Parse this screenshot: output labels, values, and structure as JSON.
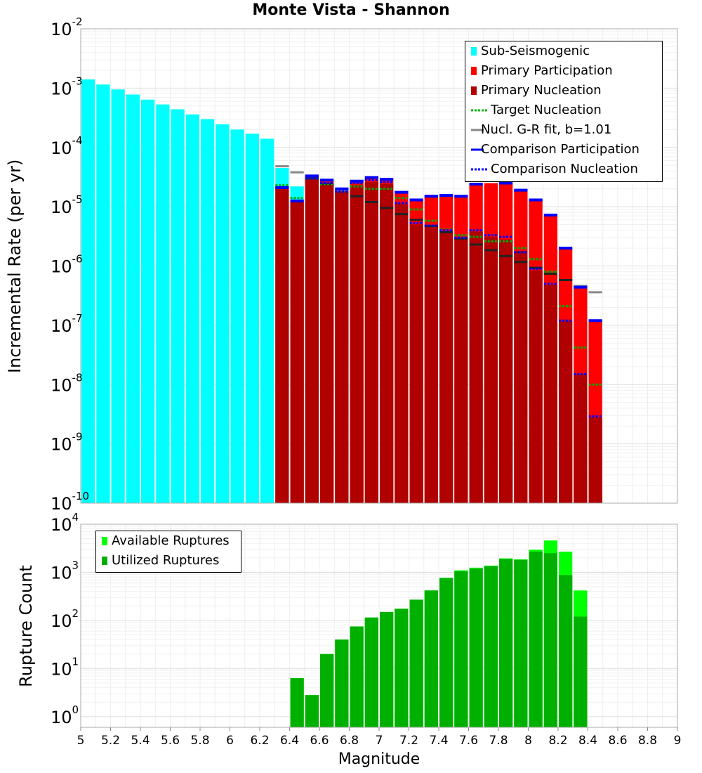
{
  "chart_data": [
    {
      "type": "bar",
      "title": "Monte Vista - Shannon",
      "xlabel": "",
      "ylabel": "Incremental Rate (per yr)",
      "yscale": "log",
      "ylim": [
        1e-10,
        0.01
      ],
      "xlim": [
        5,
        9
      ],
      "grid": true,
      "legend_position": "top-right",
      "y_tick_exponents": [
        "-10",
        "-9",
        "-8",
        "-7",
        "-6",
        "-5",
        "-4",
        "-3",
        "-2"
      ],
      "legend": [
        {
          "label": "Sub-Seismogenic",
          "symbol": "bar",
          "color": "#00ffff"
        },
        {
          "label": "Primary Participation",
          "symbol": "bar",
          "color": "#ff0000"
        },
        {
          "label": "Primary Nucleation",
          "symbol": "bar",
          "color": "#b00000"
        },
        {
          "label": "Target Nucleation",
          "symbol": "dotted",
          "color": "#00bb00"
        },
        {
          "label": "Nucl. G-R fit, b=1.01",
          "symbol": "line",
          "color": "#888888"
        },
        {
          "label": "Comparison Participation",
          "symbol": "line",
          "color": "#0000ff"
        },
        {
          "label": "Comparison Nucleation",
          "symbol": "dotted",
          "color": "#0000ff"
        }
      ],
      "bin_width": 0.1,
      "series": [
        {
          "name": "Sub-Seismogenic",
          "color": "#00ffff",
          "x": [
            5.05,
            5.15,
            5.25,
            5.35,
            5.45,
            5.55,
            5.65,
            5.75,
            5.85,
            5.95,
            6.05,
            6.15,
            6.25,
            6.35,
            6.45
          ],
          "values": [
            0.0014,
            0.00115,
            0.00095,
            0.00078,
            0.00064,
            0.00053,
            0.00044,
            0.00036,
            0.0003,
            0.000245,
            0.0002,
            0.00017,
            0.00014,
            4.5e-05,
            2.2e-05
          ]
        },
        {
          "name": "Primary Participation",
          "color": "#ff0000",
          "x": [
            6.35,
            6.45,
            6.55,
            6.65,
            6.75,
            6.85,
            6.95,
            7.05,
            7.15,
            7.25,
            7.35,
            7.45,
            7.55,
            7.65,
            7.75,
            7.85,
            7.95,
            8.05,
            8.15,
            8.25,
            8.35,
            8.45
          ],
          "values": [
            2e-05,
            1.2e-05,
            3.2e-05,
            2.7e-05,
            1.9e-05,
            2.6e-05,
            3e-05,
            2.9e-05,
            1.7e-05,
            1.3e-05,
            1.5e-05,
            1.5e-05,
            1.5e-05,
            2.4e-05,
            2.5e-05,
            2.4e-05,
            1.9e-05,
            1.3e-05,
            7e-06,
            2e-06,
            4.3e-07,
            1.2e-07
          ]
        },
        {
          "name": "Primary Nucleation",
          "color": "#b00000",
          "x": [
            6.35,
            6.45,
            6.55,
            6.65,
            6.75,
            6.85,
            6.95,
            7.05,
            7.15,
            7.25,
            7.35,
            7.45,
            7.55,
            7.65,
            7.75,
            7.85,
            7.95,
            8.05,
            8.15,
            8.25,
            8.35,
            8.45
          ],
          "values": [
            2e-05,
            1.2e-05,
            3e-05,
            2.5e-05,
            1.8e-05,
            2.3e-05,
            2.6e-05,
            2.4e-05,
            1.1e-05,
            5e-06,
            4.5e-06,
            3.7e-06,
            2.8e-06,
            3.8e-06,
            3.1e-06,
            2.8e-06,
            1.8e-06,
            8.5e-07,
            4.8e-07,
            1.2e-07,
            1.5e-08,
            2.8e-09
          ]
        },
        {
          "name": "Target Nucleation",
          "color": "#00aa00",
          "style": "dotted",
          "x": [
            6.35,
            6.45,
            6.55,
            6.65,
            6.75,
            6.85,
            6.95,
            7.05,
            7.15,
            7.25,
            7.35,
            7.45,
            7.55,
            7.65,
            7.75,
            7.85,
            7.95,
            8.05,
            8.15,
            8.25,
            8.35,
            8.45
          ],
          "values": [
            2.3e-05,
            1.4e-05,
            3e-05,
            2.4e-05,
            1.8e-05,
            2.2e-05,
            2e-05,
            2e-05,
            1.4e-05,
            9e-06,
            5.8e-06,
            4.1e-06,
            3.3e-06,
            3.1e-06,
            2.6e-06,
            2.6e-06,
            2e-06,
            1.3e-06,
            8e-07,
            2.1e-07,
            4.2e-08,
            1e-08
          ]
        },
        {
          "name": "Nucl. G-R fit, b=1.01",
          "color": "#888888",
          "x": [
            6.35,
            6.45,
            6.55,
            6.65,
            6.75,
            6.85,
            6.95,
            7.05,
            7.15,
            7.25,
            7.35,
            7.45,
            7.55,
            7.65,
            7.75,
            7.85,
            7.95,
            8.05,
            8.15,
            8.25,
            8.35,
            8.45
          ],
          "values": [
            4.8e-05,
            3.8e-05,
            3e-05,
            2.4e-05,
            1.9e-05,
            1.5e-05,
            1.2e-05,
            9.5e-06,
            7.5e-06,
            6e-06,
            4.7e-06,
            3.7e-06,
            2.9e-06,
            2.3e-06,
            1.85e-06,
            1.47e-06,
            1.17e-06,
            9.3e-07,
            7.4e-07,
            5.8e-07,
            4.6e-07,
            3.6e-07
          ]
        },
        {
          "name": "Comparison Participation",
          "color": "#0000ff",
          "x": [
            6.35,
            6.45,
            6.55,
            6.65,
            6.75,
            6.85,
            6.95,
            7.05,
            7.15,
            7.25,
            7.35,
            7.45,
            7.55,
            7.65,
            7.75,
            7.85,
            7.95,
            8.05,
            8.15,
            8.25,
            8.35,
            8.45
          ],
          "values": [
            2.1e-05,
            1.25e-05,
            3.3e-05,
            2.8e-05,
            2e-05,
            2.7e-05,
            3.1e-05,
            2.9e-05,
            1.75e-05,
            1.3e-05,
            1.5e-05,
            1.55e-05,
            1.5e-05,
            2.4e-05,
            3.6e-05,
            2.5e-05,
            1.9e-05,
            1.3e-05,
            7.2e-06,
            2e-06,
            4.4e-07,
            1.2e-07
          ]
        },
        {
          "name": "Comparison Nucleation",
          "color": "#0000ff",
          "style": "dotted",
          "x": [
            6.35,
            6.45,
            6.55,
            6.65,
            6.75,
            6.85,
            6.95,
            7.05,
            7.15,
            7.25,
            7.35,
            7.45,
            7.55,
            7.65,
            7.75,
            7.85,
            7.95,
            8.05,
            8.15,
            8.25,
            8.35,
            8.45
          ],
          "values": [
            2.1e-05,
            1.25e-05,
            3e-05,
            2.5e-05,
            1.8e-05,
            2.5e-05,
            2.8e-05,
            2.6e-05,
            1.15e-05,
            5.3e-06,
            4.8e-06,
            4e-06,
            3e-06,
            4e-06,
            3.3e-06,
            3.1e-06,
            1.7e-06,
            9e-07,
            5e-07,
            1.2e-07,
            1.5e-08,
            2.9e-09
          ]
        }
      ]
    },
    {
      "type": "bar",
      "title": "",
      "xlabel": "Magnitude",
      "ylabel": "Rupture Count",
      "yscale": "log",
      "ylim": [
        0.6,
        10000
      ],
      "xlim": [
        5,
        9
      ],
      "grid": true,
      "legend_position": "top-left",
      "y_tick_exponents": [
        "0",
        "1",
        "2",
        "3",
        "4"
      ],
      "x_ticks": [
        "5",
        "5.2",
        "5.4",
        "5.6",
        "5.8",
        "6",
        "6.2",
        "6.4",
        "6.6",
        "6.8",
        "7",
        "7.2",
        "7.4",
        "7.6",
        "7.8",
        "8",
        "8.2",
        "8.4",
        "8.6",
        "8.8",
        "9"
      ],
      "legend": [
        {
          "label": "Available Ruptures",
          "symbol": "bar",
          "color": "#00ff00"
        },
        {
          "label": "Utilized Ruptures",
          "symbol": "bar",
          "color": "#00b000"
        }
      ],
      "bin_width": 0.1,
      "series": [
        {
          "name": "Available Ruptures",
          "color": "#00ff00",
          "x": [
            6.45,
            6.55,
            6.65,
            6.75,
            6.85,
            6.95,
            7.05,
            7.15,
            7.25,
            7.35,
            7.45,
            7.55,
            7.65,
            7.75,
            7.85,
            7.95,
            8.05,
            8.15,
            8.25,
            8.35
          ],
          "values": [
            6.3,
            2.8,
            20,
            40,
            75,
            115,
            150,
            175,
            270,
            420,
            770,
            1100,
            1250,
            1380,
            1950,
            1860,
            2950,
            4600,
            2700,
            420
          ]
        },
        {
          "name": "Utilized Ruptures",
          "color": "#00b000",
          "x": [
            6.45,
            6.55,
            6.65,
            6.75,
            6.85,
            6.95,
            7.05,
            7.15,
            7.25,
            7.35,
            7.45,
            7.55,
            7.65,
            7.75,
            7.85,
            7.95,
            8.05,
            8.15,
            8.25,
            8.35
          ],
          "values": [
            6.3,
            2.8,
            20,
            40,
            75,
            115,
            150,
            175,
            270,
            420,
            760,
            1050,
            1200,
            1350,
            1900,
            1820,
            2700,
            2500,
            880,
            120
          ]
        }
      ]
    }
  ]
}
